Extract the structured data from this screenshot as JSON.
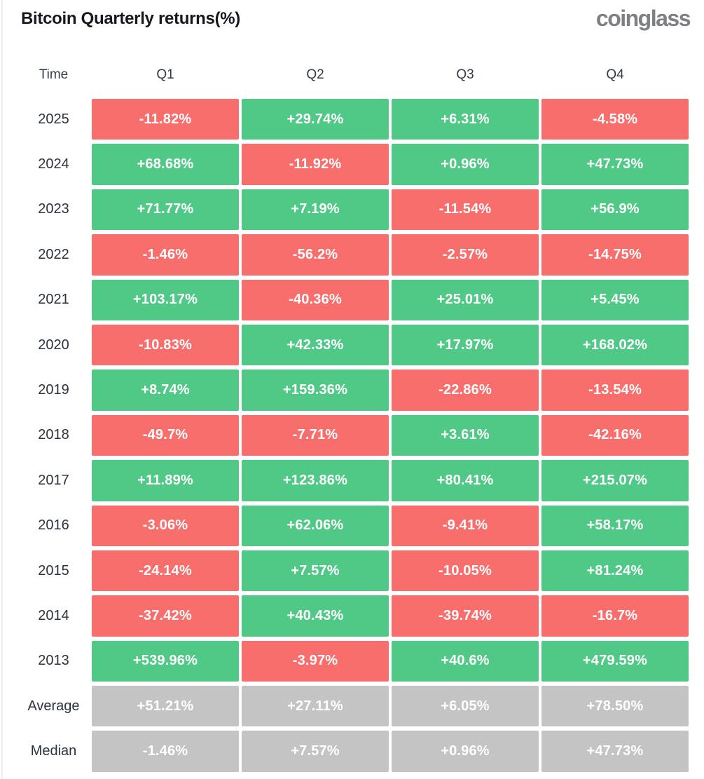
{
  "header": {
    "title": "Bitcoin Quarterly returns(%)",
    "logo": "coinglass"
  },
  "colors": {
    "positive": "#50c987",
    "negative": "#f86e6d",
    "neutral": "#c4c4c4",
    "title_text": "#15181e",
    "logo_text": "#7d8186",
    "label_text": "#2c323e",
    "cell_text": "#ffffff"
  },
  "table": {
    "columns": [
      "Time",
      "Q1",
      "Q2",
      "Q3",
      "Q4"
    ],
    "rows": [
      {
        "label": "2025",
        "cells": [
          {
            "v": "-11.82%",
            "c": "down"
          },
          {
            "v": "+29.74%",
            "c": "up"
          },
          {
            "v": "+6.31%",
            "c": "up"
          },
          {
            "v": "-4.58%",
            "c": "down"
          }
        ]
      },
      {
        "label": "2024",
        "cells": [
          {
            "v": "+68.68%",
            "c": "up"
          },
          {
            "v": "-11.92%",
            "c": "down"
          },
          {
            "v": "+0.96%",
            "c": "up"
          },
          {
            "v": "+47.73%",
            "c": "up"
          }
        ]
      },
      {
        "label": "2023",
        "cells": [
          {
            "v": "+71.77%",
            "c": "up"
          },
          {
            "v": "+7.19%",
            "c": "up"
          },
          {
            "v": "-11.54%",
            "c": "down"
          },
          {
            "v": "+56.9%",
            "c": "up"
          }
        ]
      },
      {
        "label": "2022",
        "cells": [
          {
            "v": "-1.46%",
            "c": "down"
          },
          {
            "v": "-56.2%",
            "c": "down"
          },
          {
            "v": "-2.57%",
            "c": "down"
          },
          {
            "v": "-14.75%",
            "c": "down"
          }
        ]
      },
      {
        "label": "2021",
        "cells": [
          {
            "v": "+103.17%",
            "c": "up"
          },
          {
            "v": "-40.36%",
            "c": "down"
          },
          {
            "v": "+25.01%",
            "c": "up"
          },
          {
            "v": "+5.45%",
            "c": "up"
          }
        ]
      },
      {
        "label": "2020",
        "cells": [
          {
            "v": "-10.83%",
            "c": "down"
          },
          {
            "v": "+42.33%",
            "c": "up"
          },
          {
            "v": "+17.97%",
            "c": "up"
          },
          {
            "v": "+168.02%",
            "c": "up"
          }
        ]
      },
      {
        "label": "2019",
        "cells": [
          {
            "v": "+8.74%",
            "c": "up"
          },
          {
            "v": "+159.36%",
            "c": "up"
          },
          {
            "v": "-22.86%",
            "c": "down"
          },
          {
            "v": "-13.54%",
            "c": "down"
          }
        ]
      },
      {
        "label": "2018",
        "cells": [
          {
            "v": "-49.7%",
            "c": "down"
          },
          {
            "v": "-7.71%",
            "c": "down"
          },
          {
            "v": "+3.61%",
            "c": "up"
          },
          {
            "v": "-42.16%",
            "c": "down"
          }
        ]
      },
      {
        "label": "2017",
        "cells": [
          {
            "v": "+11.89%",
            "c": "up"
          },
          {
            "v": "+123.86%",
            "c": "up"
          },
          {
            "v": "+80.41%",
            "c": "up"
          },
          {
            "v": "+215.07%",
            "c": "up"
          }
        ]
      },
      {
        "label": "2016",
        "cells": [
          {
            "v": "-3.06%",
            "c": "down"
          },
          {
            "v": "+62.06%",
            "c": "up"
          },
          {
            "v": "-9.41%",
            "c": "down"
          },
          {
            "v": "+58.17%",
            "c": "up"
          }
        ]
      },
      {
        "label": "2015",
        "cells": [
          {
            "v": "-24.14%",
            "c": "down"
          },
          {
            "v": "+7.57%",
            "c": "up"
          },
          {
            "v": "-10.05%",
            "c": "down"
          },
          {
            "v": "+81.24%",
            "c": "up"
          }
        ]
      },
      {
        "label": "2014",
        "cells": [
          {
            "v": "-37.42%",
            "c": "down"
          },
          {
            "v": "+40.43%",
            "c": "up"
          },
          {
            "v": "-39.74%",
            "c": "down"
          },
          {
            "v": "-16.7%",
            "c": "down"
          }
        ]
      },
      {
        "label": "2013",
        "cells": [
          {
            "v": "+539.96%",
            "c": "up"
          },
          {
            "v": "-3.97%",
            "c": "down"
          },
          {
            "v": "+40.6%",
            "c": "up"
          },
          {
            "v": "+479.59%",
            "c": "up"
          }
        ]
      },
      {
        "label": "Average",
        "cells": [
          {
            "v": "+51.21%",
            "c": "stat"
          },
          {
            "v": "+27.11%",
            "c": "stat"
          },
          {
            "v": "+6.05%",
            "c": "stat"
          },
          {
            "v": "+78.50%",
            "c": "stat"
          }
        ]
      },
      {
        "label": "Median",
        "cells": [
          {
            "v": "-1.46%",
            "c": "stat"
          },
          {
            "v": "+7.57%",
            "c": "stat"
          },
          {
            "v": "+0.96%",
            "c": "stat"
          },
          {
            "v": "+47.73%",
            "c": "stat"
          }
        ]
      }
    ]
  },
  "chart_data": {
    "type": "heatmap",
    "title": "Bitcoin Quarterly returns(%)",
    "unit": "%",
    "columns": [
      "Q1",
      "Q2",
      "Q3",
      "Q4"
    ],
    "rows": [
      "2025",
      "2024",
      "2023",
      "2022",
      "2021",
      "2020",
      "2019",
      "2018",
      "2017",
      "2016",
      "2015",
      "2014",
      "2013",
      "Average",
      "Median"
    ],
    "values": [
      [
        -11.82,
        29.74,
        6.31,
        -4.58
      ],
      [
        68.68,
        -11.92,
        0.96,
        47.73
      ],
      [
        71.77,
        7.19,
        -11.54,
        56.9
      ],
      [
        -1.46,
        -56.2,
        -2.57,
        -14.75
      ],
      [
        103.17,
        -40.36,
        25.01,
        5.45
      ],
      [
        -10.83,
        42.33,
        17.97,
        168.02
      ],
      [
        8.74,
        159.36,
        -22.86,
        -13.54
      ],
      [
        -49.7,
        -7.71,
        3.61,
        -42.16
      ],
      [
        11.89,
        123.86,
        80.41,
        215.07
      ],
      [
        -3.06,
        62.06,
        -9.41,
        58.17
      ],
      [
        -24.14,
        7.57,
        -10.05,
        81.24
      ],
      [
        -37.42,
        40.43,
        -39.74,
        -16.7
      ],
      [
        539.96,
        -3.97,
        40.6,
        479.59
      ],
      [
        51.21,
        27.11,
        6.05,
        78.5
      ],
      [
        -1.46,
        7.57,
        0.96,
        47.73
      ]
    ],
    "color_rule": "green = positive return, red = negative return, gray = Average/Median summary rows",
    "legend": "none",
    "grid": "white 4-6px gaps between cells"
  }
}
